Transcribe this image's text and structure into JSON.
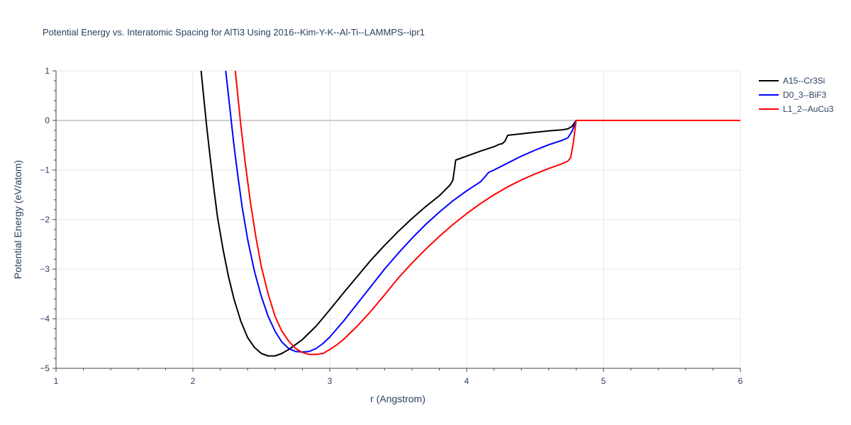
{
  "chart_data": {
    "type": "line",
    "title": "Potential Energy vs. Interatomic Spacing for AlTi3 Using 2016--Kim-Y-K--Al-Ti--LAMMPS--ipr1",
    "xlabel": "r (Angstrom)",
    "ylabel": "Potential Energy (eV/atom)",
    "xlim": [
      1,
      6
    ],
    "ylim": [
      -5,
      1
    ],
    "xticks": [
      1,
      2,
      3,
      4,
      5,
      6
    ],
    "yticks": [
      1,
      0,
      -1,
      -2,
      -3,
      -4,
      -5
    ],
    "xtick_labels": [
      "1",
      "2",
      "3",
      "4",
      "5",
      "6"
    ],
    "ytick_labels": [
      "1",
      "0",
      "−1",
      "−2",
      "−3",
      "−4",
      "−5"
    ],
    "grid": true,
    "legend_position": "top-right",
    "series": [
      {
        "name": "A15--Cr3Si",
        "color": "#000000",
        "points": [
          [
            2.06,
            1.0
          ],
          [
            2.08,
            0.45
          ],
          [
            2.1,
            -0.1
          ],
          [
            2.12,
            -0.6
          ],
          [
            2.15,
            -1.3
          ],
          [
            2.18,
            -1.95
          ],
          [
            2.22,
            -2.6
          ],
          [
            2.26,
            -3.15
          ],
          [
            2.3,
            -3.6
          ],
          [
            2.35,
            -4.05
          ],
          [
            2.4,
            -4.38
          ],
          [
            2.45,
            -4.58
          ],
          [
            2.5,
            -4.7
          ],
          [
            2.55,
            -4.75
          ],
          [
            2.6,
            -4.75
          ],
          [
            2.65,
            -4.7
          ],
          [
            2.7,
            -4.62
          ],
          [
            2.75,
            -4.52
          ],
          [
            2.8,
            -4.42
          ],
          [
            2.9,
            -4.15
          ],
          [
            3.0,
            -3.82
          ],
          [
            3.1,
            -3.48
          ],
          [
            3.2,
            -3.15
          ],
          [
            3.3,
            -2.82
          ],
          [
            3.4,
            -2.52
          ],
          [
            3.5,
            -2.24
          ],
          [
            3.6,
            -1.98
          ],
          [
            3.7,
            -1.74
          ],
          [
            3.8,
            -1.52
          ],
          [
            3.88,
            -1.3
          ],
          [
            3.9,
            -1.2
          ],
          [
            3.92,
            -0.8
          ],
          [
            4.0,
            -0.72
          ],
          [
            4.1,
            -0.62
          ],
          [
            4.2,
            -0.53
          ],
          [
            4.24,
            -0.48
          ],
          [
            4.26,
            -0.47
          ],
          [
            4.28,
            -0.42
          ],
          [
            4.3,
            -0.3
          ],
          [
            4.4,
            -0.27
          ],
          [
            4.5,
            -0.24
          ],
          [
            4.6,
            -0.21
          ],
          [
            4.7,
            -0.19
          ],
          [
            4.74,
            -0.17
          ],
          [
            4.77,
            -0.12
          ],
          [
            4.8,
            0.0
          ],
          [
            5.0,
            0.0
          ],
          [
            5.5,
            0.0
          ],
          [
            6.0,
            0.0
          ]
        ]
      },
      {
        "name": "D0_3--BiF3",
        "color": "#0000ff",
        "points": [
          [
            2.24,
            1.0
          ],
          [
            2.26,
            0.5
          ],
          [
            2.28,
            0.0
          ],
          [
            2.3,
            -0.5
          ],
          [
            2.33,
            -1.15
          ],
          [
            2.36,
            -1.75
          ],
          [
            2.4,
            -2.4
          ],
          [
            2.45,
            -3.05
          ],
          [
            2.5,
            -3.55
          ],
          [
            2.55,
            -3.95
          ],
          [
            2.6,
            -4.25
          ],
          [
            2.65,
            -4.47
          ],
          [
            2.7,
            -4.6
          ],
          [
            2.75,
            -4.66
          ],
          [
            2.8,
            -4.67
          ],
          [
            2.85,
            -4.66
          ],
          [
            2.9,
            -4.6
          ],
          [
            2.95,
            -4.5
          ],
          [
            3.0,
            -4.37
          ],
          [
            3.1,
            -4.05
          ],
          [
            3.2,
            -3.7
          ],
          [
            3.3,
            -3.35
          ],
          [
            3.4,
            -3.0
          ],
          [
            3.5,
            -2.68
          ],
          [
            3.6,
            -2.38
          ],
          [
            3.7,
            -2.1
          ],
          [
            3.8,
            -1.85
          ],
          [
            3.9,
            -1.62
          ],
          [
            4.0,
            -1.42
          ],
          [
            4.1,
            -1.24
          ],
          [
            4.14,
            -1.12
          ],
          [
            4.16,
            -1.05
          ],
          [
            4.2,
            -1.0
          ],
          [
            4.3,
            -0.86
          ],
          [
            4.4,
            -0.72
          ],
          [
            4.5,
            -0.6
          ],
          [
            4.6,
            -0.49
          ],
          [
            4.7,
            -0.4
          ],
          [
            4.74,
            -0.35
          ],
          [
            4.77,
            -0.22
          ],
          [
            4.8,
            0.0
          ],
          [
            5.0,
            0.0
          ],
          [
            5.5,
            0.0
          ],
          [
            6.0,
            0.0
          ]
        ]
      },
      {
        "name": "L1_2--AuCu3",
        "color": "#ff0000",
        "points": [
          [
            2.31,
            1.0
          ],
          [
            2.33,
            0.45
          ],
          [
            2.35,
            -0.1
          ],
          [
            2.38,
            -0.8
          ],
          [
            2.42,
            -1.65
          ],
          [
            2.46,
            -2.35
          ],
          [
            2.5,
            -2.95
          ],
          [
            2.55,
            -3.5
          ],
          [
            2.6,
            -3.95
          ],
          [
            2.65,
            -4.25
          ],
          [
            2.7,
            -4.45
          ],
          [
            2.75,
            -4.6
          ],
          [
            2.8,
            -4.68
          ],
          [
            2.85,
            -4.72
          ],
          [
            2.9,
            -4.72
          ],
          [
            2.95,
            -4.7
          ],
          [
            3.0,
            -4.62
          ],
          [
            3.05,
            -4.53
          ],
          [
            3.1,
            -4.42
          ],
          [
            3.2,
            -4.15
          ],
          [
            3.3,
            -3.85
          ],
          [
            3.4,
            -3.52
          ],
          [
            3.5,
            -3.18
          ],
          [
            3.6,
            -2.88
          ],
          [
            3.7,
            -2.6
          ],
          [
            3.8,
            -2.34
          ],
          [
            3.9,
            -2.1
          ],
          [
            4.0,
            -1.88
          ],
          [
            4.1,
            -1.68
          ],
          [
            4.2,
            -1.5
          ],
          [
            4.3,
            -1.34
          ],
          [
            4.4,
            -1.2
          ],
          [
            4.5,
            -1.08
          ],
          [
            4.6,
            -0.97
          ],
          [
            4.7,
            -0.87
          ],
          [
            4.74,
            -0.82
          ],
          [
            4.76,
            -0.75
          ],
          [
            4.78,
            -0.45
          ],
          [
            4.8,
            0.0
          ],
          [
            5.0,
            0.0
          ],
          [
            5.5,
            0.0
          ],
          [
            6.0,
            0.0
          ]
        ]
      }
    ]
  }
}
